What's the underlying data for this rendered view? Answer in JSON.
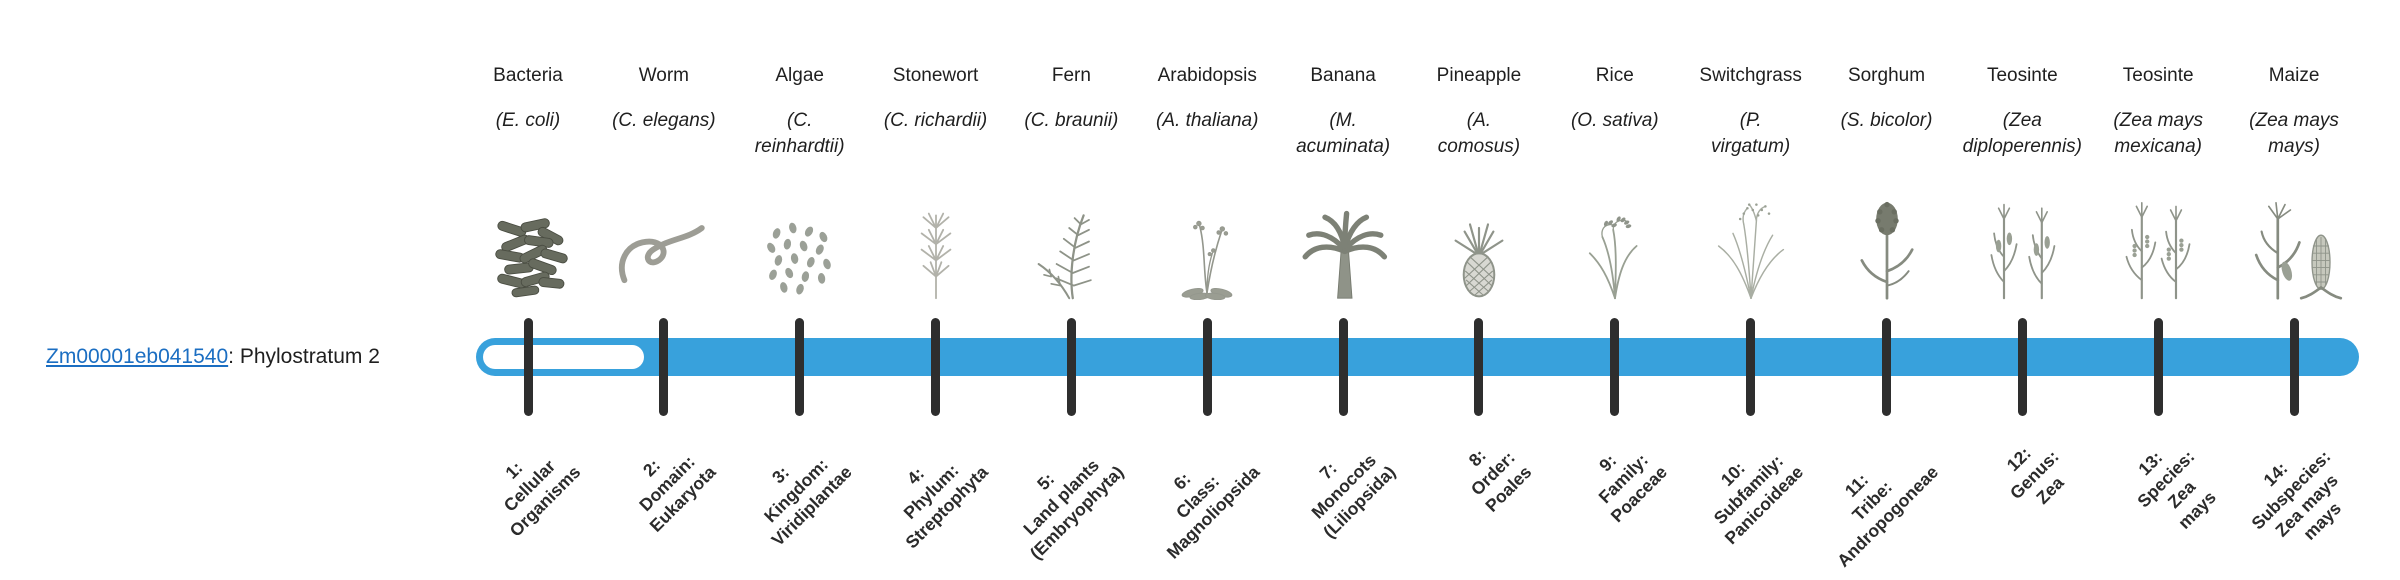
{
  "gene": {
    "id": "Zm00001eb041540",
    "suffix": ": Phylostratum 2",
    "phylostratum_label": "Phylostratum 2"
  },
  "timeline": {
    "bar_color": "#38a1dc",
    "unfilled_color": "#ffffff",
    "tick_color": "#2e2e2e",
    "link_color": "#1b6ec2",
    "text_color": "#1f1f1f",
    "filled_from_stage": 2,
    "num_stages": 14
  },
  "stages": [
    {
      "number": 1,
      "common_name": "Bacteria",
      "scientific_name_lines": [
        "(E. coli)"
      ],
      "icon": "bacteria-icon",
      "tick_label_lines": [
        "1:",
        "Cellular",
        "Organisms"
      ]
    },
    {
      "number": 2,
      "common_name": "Worm",
      "scientific_name_lines": [
        "(C. elegans)"
      ],
      "icon": "worm-icon",
      "tick_label_lines": [
        "2:",
        "Domain:",
        "Eukaryota"
      ]
    },
    {
      "number": 3,
      "common_name": "Algae",
      "scientific_name_lines": [
        "(C.",
        "reinhardtii)"
      ],
      "icon": "algae-icon",
      "tick_label_lines": [
        "3:",
        "Kingdom:",
        "Viridiplantae"
      ]
    },
    {
      "number": 4,
      "common_name": "Stonewort",
      "scientific_name_lines": [
        "(C. richardii)"
      ],
      "icon": "stonewort-icon",
      "tick_label_lines": [
        "4:",
        "Phylum:",
        "Streptophyta"
      ]
    },
    {
      "number": 5,
      "common_name": "Fern",
      "scientific_name_lines": [
        "(C. braunii)"
      ],
      "icon": "fern-icon",
      "tick_label_lines": [
        "5:",
        "Land plants",
        "(Embryophyta)"
      ]
    },
    {
      "number": 6,
      "common_name": "Arabidopsis",
      "scientific_name_lines": [
        "(A. thaliana)"
      ],
      "icon": "arabidopsis-icon",
      "tick_label_lines": [
        "6:",
        "Class:",
        "Magnoliopsida"
      ]
    },
    {
      "number": 7,
      "common_name": "Banana",
      "scientific_name_lines": [
        "(M.",
        "acuminata)"
      ],
      "icon": "banana-icon",
      "tick_label_lines": [
        "7:",
        "Monocots",
        "(Liliopsida)"
      ]
    },
    {
      "number": 8,
      "common_name": "Pineapple",
      "scientific_name_lines": [
        "(A.",
        "comosus)"
      ],
      "icon": "pineapple-icon",
      "tick_label_lines": [
        "8:",
        "Order:",
        "Poales"
      ]
    },
    {
      "number": 9,
      "common_name": "Rice",
      "scientific_name_lines": [
        "(O. sativa)"
      ],
      "icon": "rice-icon",
      "tick_label_lines": [
        "9:",
        "Family:",
        "Poaceae"
      ]
    },
    {
      "number": 10,
      "common_name": "Switchgrass",
      "scientific_name_lines": [
        "(P.",
        "virgatum)"
      ],
      "icon": "switchgrass-icon",
      "tick_label_lines": [
        "10:",
        "Subfamily:",
        "Panicoideae"
      ]
    },
    {
      "number": 11,
      "common_name": "Sorghum",
      "scientific_name_lines": [
        "(S. bicolor)"
      ],
      "icon": "sorghum-icon",
      "tick_label_lines": [
        "11:",
        "Tribe:",
        "Andropogoneae"
      ]
    },
    {
      "number": 12,
      "common_name": "Teosinte",
      "scientific_name_lines": [
        "(Zea",
        "diploperennis)"
      ],
      "icon": "teosinte-diploperennis-icon",
      "tick_label_lines": [
        "12:",
        "Genus:",
        "Zea"
      ]
    },
    {
      "number": 13,
      "common_name": "Teosinte",
      "scientific_name_lines": [
        "(Zea mays",
        "mexicana)"
      ],
      "icon": "teosinte-mexicana-icon",
      "tick_label_lines": [
        "13:",
        "Species:",
        "Zea",
        "mays"
      ]
    },
    {
      "number": 14,
      "common_name": "Maize",
      "scientific_name_lines": [
        "(Zea mays",
        "mays)"
      ],
      "icon": "maize-icon",
      "tick_label_lines": [
        "14:",
        "Subspecies:",
        "Zea mays",
        "mays"
      ]
    }
  ]
}
